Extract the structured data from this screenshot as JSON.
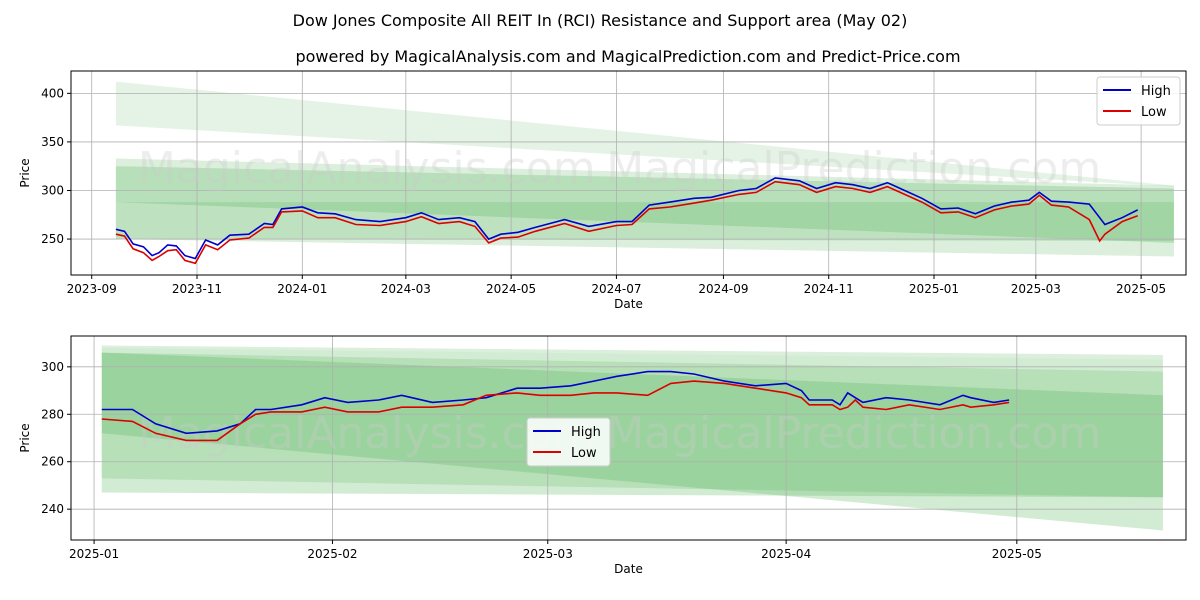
{
  "title": "Dow Jones Composite All REIT In (RCI) Resistance and Support area (May 02)",
  "subtitle": "powered by MagicalAnalysis.com and MagicalPrediction.com and Predict-Price.com",
  "watermarks": [
    "MagicalAnalysis.com",
    "MagicalPrediction.com"
  ],
  "colors": {
    "high": "#0000cc",
    "low": "#dd0000",
    "band": "#4caf50"
  },
  "chart_data": [
    {
      "type": "line",
      "xlabel": "Date",
      "ylabel": "Price",
      "xlim": [
        "2023-08-20",
        "2025-05-27"
      ],
      "ylim": [
        213,
        423
      ],
      "yticks": [
        250,
        300,
        350,
        400
      ],
      "xticks": [
        "2023-09",
        "2023-11",
        "2024-01",
        "2024-03",
        "2024-05",
        "2024-07",
        "2024-09",
        "2024-11",
        "2025-01",
        "2025-03",
        "2025-05"
      ],
      "grid": true,
      "legend": "top-right",
      "bands": [
        {
          "x": [
            "2023-09-15",
            "2025-05-20"
          ],
          "top": [
            412,
            305
          ],
          "bottom": [
            367,
            304
          ],
          "opacity": 0.15
        },
        {
          "x": [
            "2023-09-15",
            "2025-05-20"
          ],
          "top": [
            333,
            305
          ],
          "bottom": [
            250,
            248
          ],
          "opacity": 0.2
        },
        {
          "x": [
            "2023-09-15",
            "2025-05-20"
          ],
          "top": [
            325,
            302
          ],
          "bottom": [
            288,
            246
          ],
          "opacity": 0.25
        },
        {
          "x": [
            "2023-09-15",
            "2025-05-20"
          ],
          "top": [
            288,
            288
          ],
          "bottom": [
            250,
            232
          ],
          "opacity": 0.2
        }
      ],
      "series": [
        {
          "name": "High",
          "x": [
            "2023-09-15",
            "2023-09-20",
            "2023-09-25",
            "2023-10-01",
            "2023-10-06",
            "2023-10-10",
            "2023-10-15",
            "2023-10-20",
            "2023-10-25",
            "2023-10-31",
            "2023-11-06",
            "2023-11-13",
            "2023-11-20",
            "2023-12-01",
            "2023-12-10",
            "2023-12-15",
            "2023-12-20",
            "2024-01-01",
            "2024-01-10",
            "2024-01-20",
            "2024-02-01",
            "2024-02-15",
            "2024-03-01",
            "2024-03-10",
            "2024-03-20",
            "2024-04-01",
            "2024-04-10",
            "2024-04-18",
            "2024-04-25",
            "2024-05-05",
            "2024-05-15",
            "2024-06-01",
            "2024-06-15",
            "2024-07-01",
            "2024-07-10",
            "2024-07-20",
            "2024-08-01",
            "2024-08-15",
            "2024-08-25",
            "2024-09-10",
            "2024-09-20",
            "2024-10-01",
            "2024-10-15",
            "2024-10-25",
            "2024-11-05",
            "2024-11-15",
            "2024-11-25",
            "2024-12-05",
            "2024-12-15",
            "2024-12-25",
            "2025-01-05",
            "2025-01-15",
            "2025-01-25",
            "2025-02-05",
            "2025-02-15",
            "2025-02-25",
            "2025-03-03",
            "2025-03-10",
            "2025-03-20",
            "2025-04-01",
            "2025-04-07",
            "2025-04-10",
            "2025-04-20",
            "2025-04-29"
          ],
          "values": [
            260,
            258,
            245,
            242,
            233,
            236,
            244,
            243,
            233,
            230,
            249,
            244,
            254,
            255,
            266,
            265,
            281,
            283,
            277,
            276,
            270,
            268,
            272,
            277,
            270,
            272,
            268,
            250,
            255,
            257,
            262,
            270,
            263,
            268,
            268,
            285,
            288,
            292,
            293,
            300,
            302,
            313,
            310,
            302,
            308,
            306,
            302,
            308,
            300,
            292,
            281,
            282,
            276,
            284,
            288,
            290,
            298,
            289,
            288,
            286,
            272,
            265,
            272,
            280
          ],
          "color": "#0000cc"
        },
        {
          "name": "Low",
          "x": [
            "2023-09-15",
            "2023-09-20",
            "2023-09-25",
            "2023-10-01",
            "2023-10-06",
            "2023-10-10",
            "2023-10-15",
            "2023-10-20",
            "2023-10-25",
            "2023-10-31",
            "2023-11-06",
            "2023-11-13",
            "2023-11-20",
            "2023-12-01",
            "2023-12-10",
            "2023-12-15",
            "2023-12-20",
            "2024-01-01",
            "2024-01-10",
            "2024-01-20",
            "2024-02-01",
            "2024-02-15",
            "2024-03-01",
            "2024-03-10",
            "2024-03-20",
            "2024-04-01",
            "2024-04-10",
            "2024-04-18",
            "2024-04-25",
            "2024-05-05",
            "2024-05-15",
            "2024-06-01",
            "2024-06-15",
            "2024-07-01",
            "2024-07-10",
            "2024-07-20",
            "2024-08-01",
            "2024-08-15",
            "2024-08-25",
            "2024-09-10",
            "2024-09-20",
            "2024-10-01",
            "2024-10-15",
            "2024-10-25",
            "2024-11-05",
            "2024-11-15",
            "2024-11-25",
            "2024-12-05",
            "2024-12-15",
            "2024-12-25",
            "2025-01-05",
            "2025-01-15",
            "2025-01-25",
            "2025-02-05",
            "2025-02-15",
            "2025-02-25",
            "2025-03-03",
            "2025-03-10",
            "2025-03-20",
            "2025-04-01",
            "2025-04-07",
            "2025-04-10",
            "2025-04-20",
            "2025-04-29"
          ],
          "values": [
            255,
            253,
            240,
            236,
            228,
            232,
            238,
            239,
            228,
            225,
            244,
            239,
            249,
            251,
            262,
            262,
            278,
            279,
            272,
            272,
            265,
            264,
            268,
            273,
            266,
            268,
            263,
            246,
            251,
            252,
            258,
            266,
            258,
            264,
            265,
            281,
            283,
            287,
            290,
            296,
            298,
            309,
            306,
            298,
            304,
            302,
            298,
            304,
            296,
            288,
            277,
            278,
            272,
            280,
            284,
            286,
            295,
            285,
            283,
            270,
            248,
            255,
            268,
            274
          ],
          "color": "#dd0000"
        }
      ]
    },
    {
      "type": "line",
      "xlabel": "Date",
      "ylabel": "Price",
      "xlim": [
        "2024-12-29",
        "2025-05-23"
      ],
      "ylim": [
        227,
        313
      ],
      "yticks": [
        240,
        260,
        280,
        300
      ],
      "xticks": [
        "2025-01",
        "2025-02",
        "2025-03",
        "2025-04",
        "2025-05"
      ],
      "grid": true,
      "legend": "center",
      "bands": [
        {
          "x": [
            "2025-01-02",
            "2025-05-20"
          ],
          "top": [
            309,
            305
          ],
          "bottom": [
            308,
            303
          ],
          "opacity": 0.2
        },
        {
          "x": [
            "2025-01-02",
            "2025-05-20"
          ],
          "top": [
            308,
            303
          ],
          "bottom": [
            247,
            245
          ],
          "opacity": 0.25
        },
        {
          "x": [
            "2025-01-02",
            "2025-05-20"
          ],
          "top": [
            306,
            288
          ],
          "bottom": [
            272,
            231
          ],
          "opacity": 0.25
        },
        {
          "x": [
            "2025-01-02",
            "2025-05-20"
          ],
          "top": [
            306,
            298
          ],
          "bottom": [
            253,
            245
          ],
          "opacity": 0.2
        }
      ],
      "series": [
        {
          "name": "High",
          "x": [
            "2025-01-02",
            "2025-01-06",
            "2025-01-09",
            "2025-01-13",
            "2025-01-17",
            "2025-01-20",
            "2025-01-22",
            "2025-01-24",
            "2025-01-28",
            "2025-01-31",
            "2025-02-03",
            "2025-02-07",
            "2025-02-10",
            "2025-02-14",
            "2025-02-18",
            "2025-02-21",
            "2025-02-25",
            "2025-02-28",
            "2025-03-04",
            "2025-03-07",
            "2025-03-10",
            "2025-03-14",
            "2025-03-17",
            "2025-03-20",
            "2025-03-24",
            "2025-03-28",
            "2025-04-01",
            "2025-04-03",
            "2025-04-04",
            "2025-04-07",
            "2025-04-08",
            "2025-04-09",
            "2025-04-10",
            "2025-04-11",
            "2025-04-14",
            "2025-04-17",
            "2025-04-21",
            "2025-04-24",
            "2025-04-25",
            "2025-04-28",
            "2025-04-30"
          ],
          "values": [
            282,
            282,
            276,
            272,
            273,
            276,
            282,
            282,
            284,
            287,
            285,
            286,
            288,
            285,
            286,
            287,
            291,
            291,
            292,
            294,
            296,
            298,
            298,
            297,
            294,
            292,
            293,
            290,
            286,
            286,
            284,
            289,
            287,
            285,
            287,
            286,
            284,
            288,
            287,
            285,
            286
          ],
          "color": "#0000cc"
        },
        {
          "name": "Low",
          "x": [
            "2025-01-02",
            "2025-01-06",
            "2025-01-09",
            "2025-01-13",
            "2025-01-17",
            "2025-01-20",
            "2025-01-22",
            "2025-01-24",
            "2025-01-28",
            "2025-01-31",
            "2025-02-03",
            "2025-02-07",
            "2025-02-10",
            "2025-02-14",
            "2025-02-18",
            "2025-02-21",
            "2025-02-25",
            "2025-02-28",
            "2025-03-04",
            "2025-03-07",
            "2025-03-10",
            "2025-03-14",
            "2025-03-17",
            "2025-03-20",
            "2025-03-24",
            "2025-03-28",
            "2025-04-01",
            "2025-04-03",
            "2025-04-04",
            "2025-04-07",
            "2025-04-08",
            "2025-04-09",
            "2025-04-10",
            "2025-04-11",
            "2025-04-14",
            "2025-04-17",
            "2025-04-21",
            "2025-04-24",
            "2025-04-25",
            "2025-04-28",
            "2025-04-30"
          ],
          "values": [
            278,
            277,
            272,
            269,
            269,
            276,
            280,
            281,
            281,
            283,
            281,
            281,
            283,
            283,
            284,
            288,
            289,
            288,
            288,
            289,
            289,
            288,
            293,
            294,
            293,
            291,
            289,
            287,
            284,
            284,
            282,
            283,
            286,
            283,
            282,
            284,
            282,
            284,
            283,
            284,
            285
          ],
          "color": "#dd0000"
        }
      ]
    }
  ]
}
